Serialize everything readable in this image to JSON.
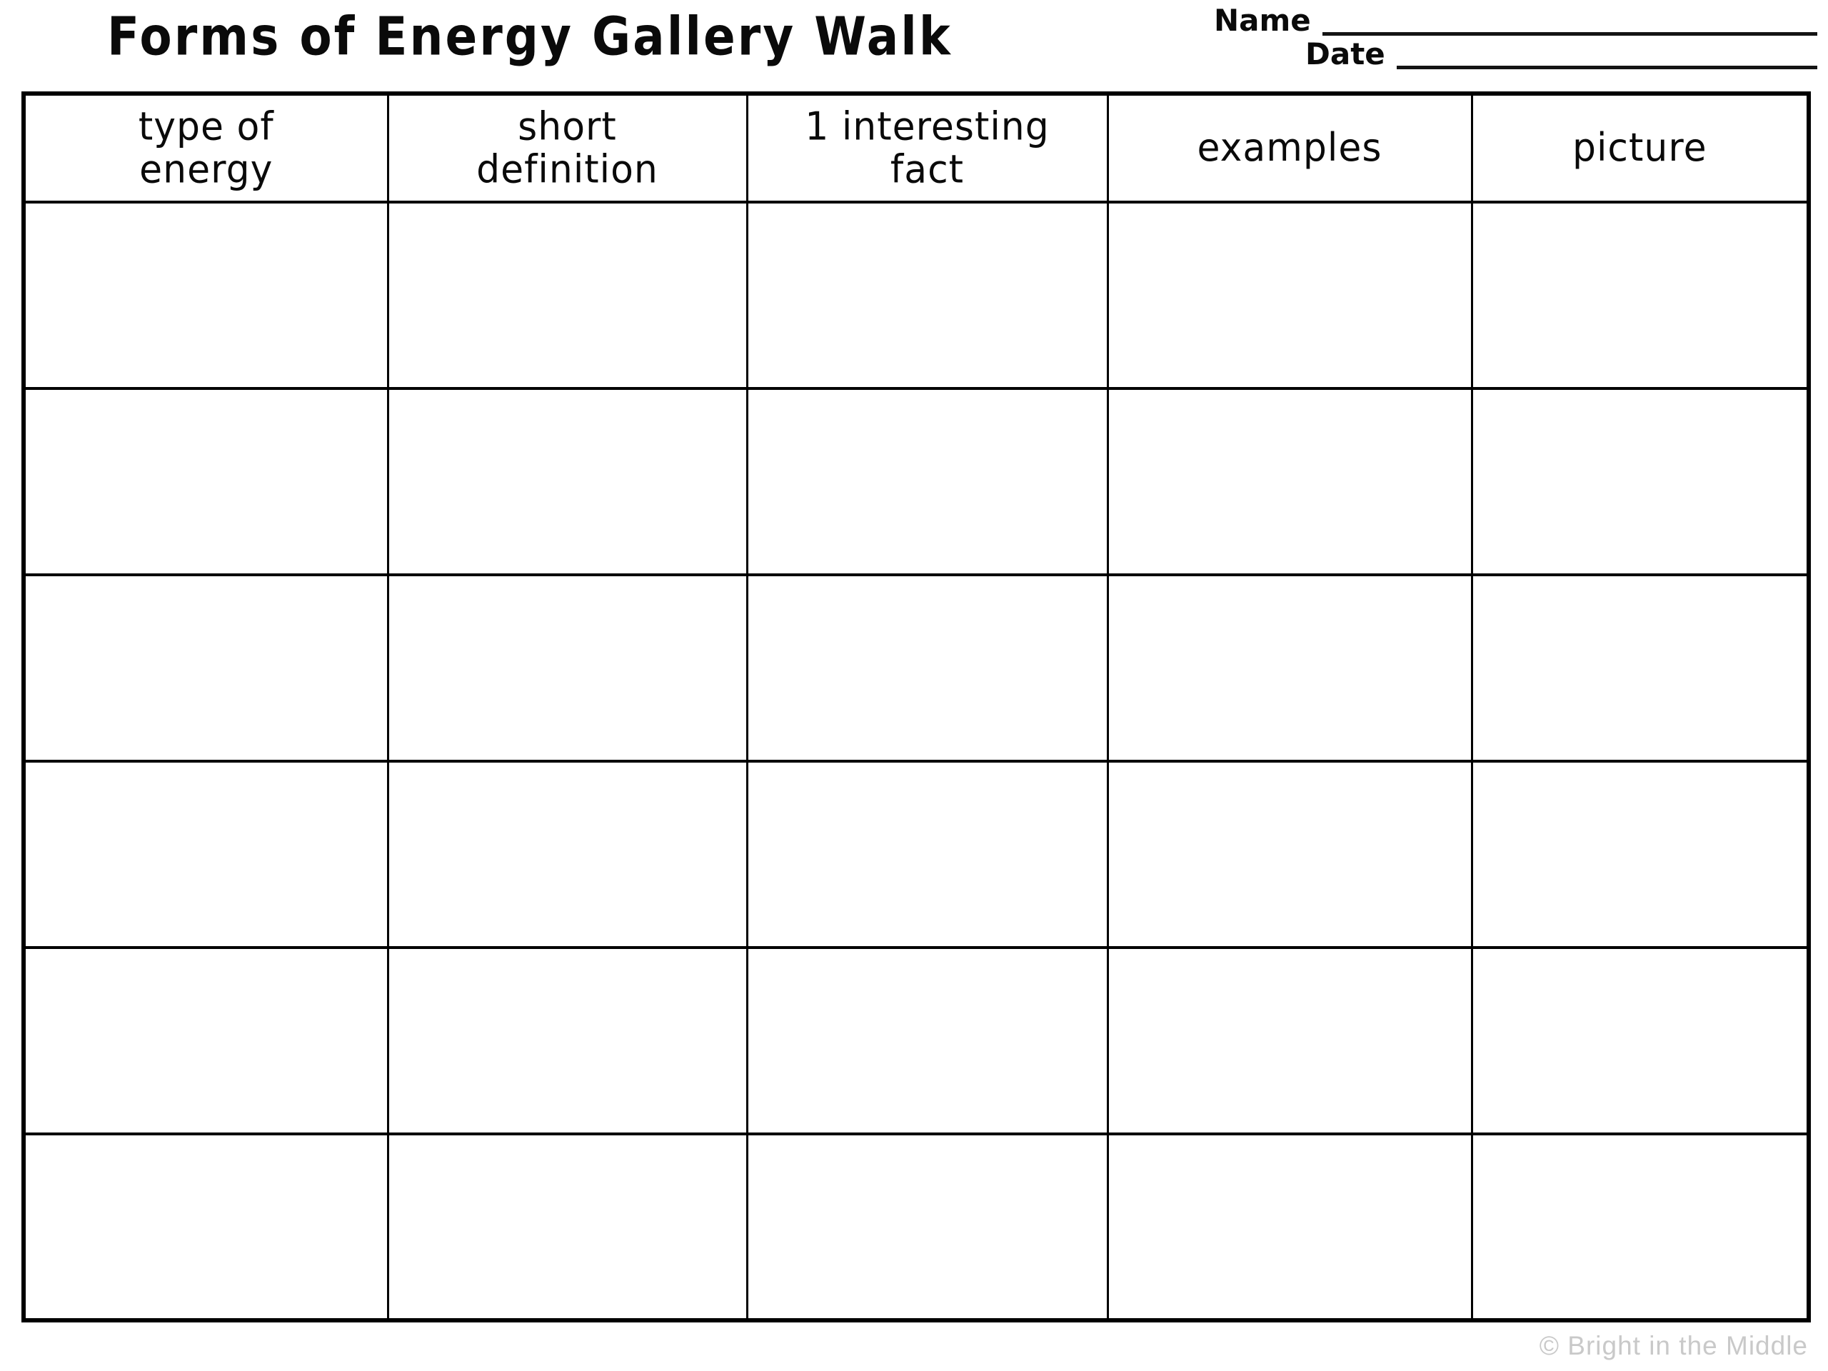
{
  "page": {
    "title": "Forms of Energy Gallery Walk",
    "copyright": "© Bright in the Middle"
  },
  "name_date": {
    "name_label": "Name",
    "date_label": "Date",
    "name_value": "",
    "date_value": ""
  },
  "table": {
    "headers": [
      {
        "id": "type-of-energy",
        "label": "type of\nenergy"
      },
      {
        "id": "short-definition",
        "label": "short\ndefinition"
      },
      {
        "id": "interesting-fact",
        "label": "1 interesting\nfact"
      },
      {
        "id": "examples",
        "label": "examples"
      },
      {
        "id": "picture",
        "label": "picture"
      }
    ],
    "rows": 6,
    "cell_values": []
  },
  "colors": {
    "line": "#000000",
    "text": "#0a0a0a",
    "copyright": "#c9c9c9"
  }
}
